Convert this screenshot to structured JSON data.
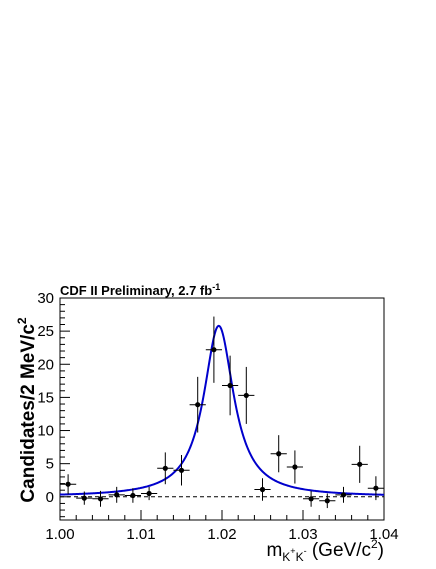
{
  "chart_data": {
    "type": "scatter",
    "title": "CDF II Preliminary, 2.7 fb",
    "title_superscript": "-1",
    "ylabel": "Candidates/2 MeV/c",
    "ylabel_superscript": "2",
    "xlabel": {
      "main": "m",
      "subscript_parts": [
        {
          "text": "K",
          "sup": "+"
        },
        {
          "text": "K",
          "sup": "-"
        }
      ],
      "unit_prefix": " (GeV/c",
      "unit_sup": "2",
      "unit_suffix": ")"
    },
    "xlim": [
      1.0,
      1.04
    ],
    "ylim": [
      -3.5,
      30
    ],
    "x_ticks": [
      {
        "value": 1.0,
        "label": "1.00"
      },
      {
        "value": 1.01,
        "label": "1.01"
      },
      {
        "value": 1.02,
        "label": "1.02"
      },
      {
        "value": 1.03,
        "label": "1.03"
      },
      {
        "value": 1.04,
        "label": "1.04"
      }
    ],
    "y_ticks": [
      {
        "value": 0,
        "label": "0"
      },
      {
        "value": 5,
        "label": "5"
      },
      {
        "value": 10,
        "label": "10"
      },
      {
        "value": 15,
        "label": "15"
      },
      {
        "value": 20,
        "label": "20"
      },
      {
        "value": 25,
        "label": "25"
      },
      {
        "value": 30,
        "label": "30"
      }
    ],
    "series": [
      {
        "kind": "points-with-errors",
        "color": "#000000",
        "x_halfwidth": 0.001,
        "points": [
          {
            "x": 1.001,
            "y": 1.9,
            "err": 1.5
          },
          {
            "x": 1.003,
            "y": -0.2,
            "err": 1.0
          },
          {
            "x": 1.005,
            "y": -0.3,
            "err": 1.2
          },
          {
            "x": 1.007,
            "y": 0.3,
            "err": 1.2
          },
          {
            "x": 1.009,
            "y": 0.2,
            "err": 1.1
          },
          {
            "x": 1.011,
            "y": 0.5,
            "err": 1.0
          },
          {
            "x": 1.013,
            "y": 4.3,
            "err": 2.4
          },
          {
            "x": 1.015,
            "y": 4.0,
            "err": 2.3
          },
          {
            "x": 1.017,
            "y": 13.9,
            "err": 4.2
          },
          {
            "x": 1.019,
            "y": 22.2,
            "err": 5.0
          },
          {
            "x": 1.021,
            "y": 16.8,
            "err": 4.5
          },
          {
            "x": 1.023,
            "y": 15.3,
            "err": 4.3
          },
          {
            "x": 1.025,
            "y": 1.1,
            "err": 1.7
          },
          {
            "x": 1.027,
            "y": 6.5,
            "err": 2.8
          },
          {
            "x": 1.029,
            "y": 4.5,
            "err": 2.5
          },
          {
            "x": 1.031,
            "y": -0.3,
            "err": 1.2
          },
          {
            "x": 1.033,
            "y": -0.6,
            "err": 1.1
          },
          {
            "x": 1.035,
            "y": 0.3,
            "err": 1.2
          },
          {
            "x": 1.037,
            "y": 4.9,
            "err": 2.8
          },
          {
            "x": 1.039,
            "y": 1.3,
            "err": 1.8
          }
        ]
      },
      {
        "kind": "fit-curve",
        "color": "#0000cc",
        "shape": "breit-wigner",
        "peak_x": 1.0196,
        "peak_y": 25.8,
        "fwhm": 0.0045,
        "baseline": 0.0
      },
      {
        "kind": "reference-line",
        "style": "dashed",
        "color": "#000000",
        "y": 0
      }
    ]
  }
}
